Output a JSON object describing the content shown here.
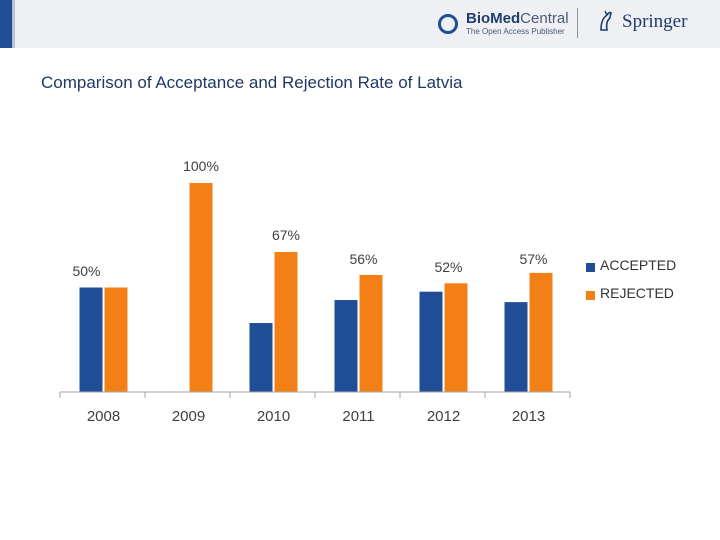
{
  "header": {
    "biomed_name_bold": "BioMed",
    "biomed_name_light": "Central",
    "biomed_tagline": "The Open Access Publisher",
    "springer_name": "Springer"
  },
  "colors": {
    "accepted": "#1f4e96",
    "rejected": "#f28017",
    "axis": "#a6a6a6",
    "label": "#404040"
  },
  "chart_data": {
    "type": "bar",
    "title": "Comparison of Acceptance and Rejection Rate of Latvia",
    "xlabel": "",
    "ylabel": "",
    "ylim": [
      0,
      100
    ],
    "grid": false,
    "legend_position": "right",
    "categories": [
      "2008",
      "2009",
      "2010",
      "2011",
      "2012",
      "2013"
    ],
    "series": [
      {
        "name": "ACCEPTED",
        "values": [
          50,
          0,
          33,
          44,
          48,
          43
        ]
      },
      {
        "name": "REJECTED",
        "values": [
          50,
          100,
          67,
          56,
          52,
          57
        ]
      }
    ],
    "data_labels": [
      "50%",
      "100%",
      "67%",
      "56%",
      "52%",
      "57%"
    ]
  }
}
